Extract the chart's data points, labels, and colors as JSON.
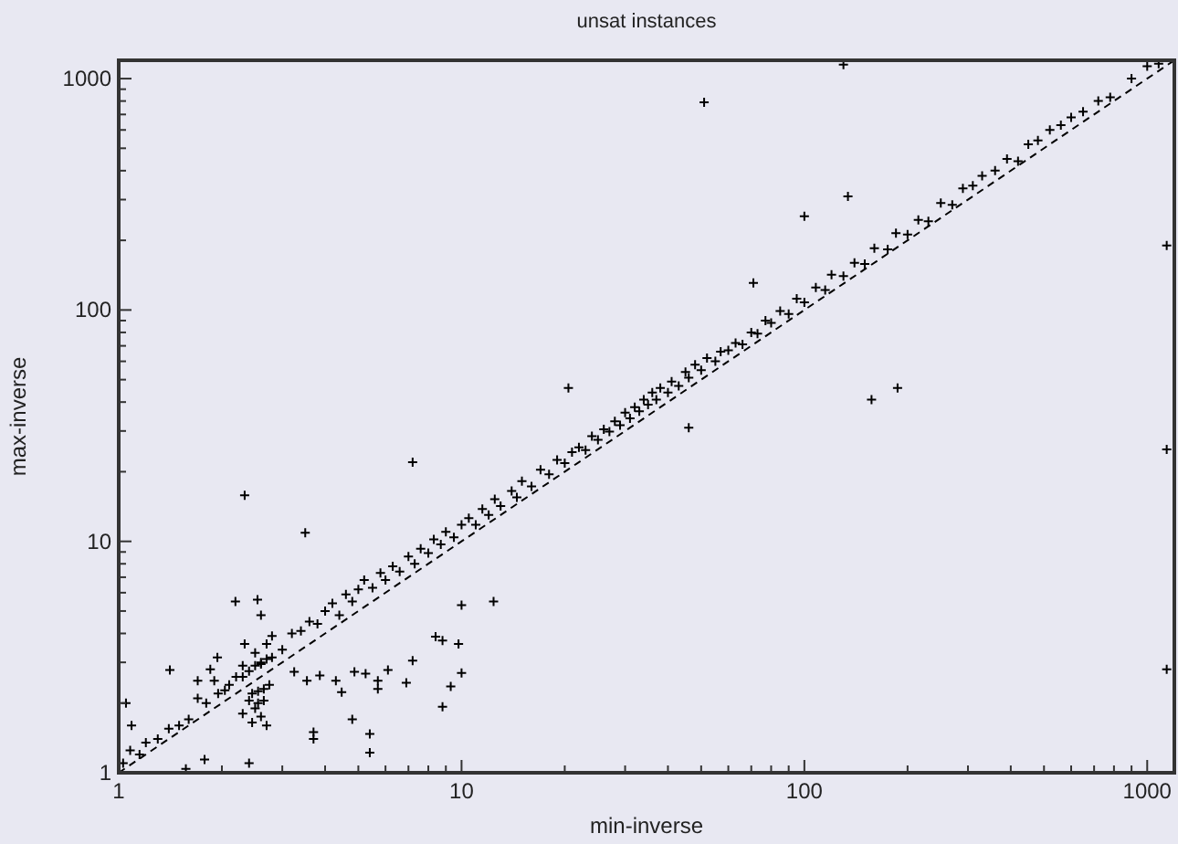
{
  "chart_data": {
    "type": "scatter",
    "title": "unsat instances",
    "xlabel": "min-inverse",
    "ylabel": "max-inverse",
    "log": "xy",
    "grid": false,
    "xlim": [
      1,
      1200
    ],
    "ylim": [
      1,
      1200
    ],
    "xticks": [
      1,
      {
        "value": 2,
        "label": null
      },
      {
        "value": 3,
        "label": null
      },
      {
        "value": 4,
        "label": null
      },
      {
        "value": 5,
        "label": null
      },
      {
        "value": 6,
        "label": null
      },
      {
        "value": 7,
        "label": null
      },
      {
        "value": 8,
        "label": null
      },
      {
        "value": 9,
        "label": null
      },
      10,
      {
        "value": 20,
        "label": null
      },
      {
        "value": 30,
        "label": null
      },
      {
        "value": 40,
        "label": null
      },
      {
        "value": 50,
        "label": null
      },
      {
        "value": 60,
        "label": null
      },
      {
        "value": 70,
        "label": null
      },
      {
        "value": 80,
        "label": null
      },
      {
        "value": 90,
        "label": null
      },
      100,
      {
        "value": 200,
        "label": null
      },
      {
        "value": 300,
        "label": null
      },
      {
        "value": 400,
        "label": null
      },
      {
        "value": 500,
        "label": null
      },
      {
        "value": 600,
        "label": null
      },
      {
        "value": 700,
        "label": null
      },
      {
        "value": 800,
        "label": null
      },
      {
        "value": 900,
        "label": null
      },
      1000
    ],
    "yticks": [
      1,
      {
        "value": 2,
        "label": null
      },
      {
        "value": 3,
        "label": null
      },
      {
        "value": 4,
        "label": null
      },
      {
        "value": 5,
        "label": null
      },
      {
        "value": 6,
        "label": null
      },
      {
        "value": 7,
        "label": null
      },
      {
        "value": 8,
        "label": null
      },
      {
        "value": 9,
        "label": null
      },
      10,
      {
        "value": 20,
        "label": null
      },
      {
        "value": 30,
        "label": null
      },
      {
        "value": 40,
        "label": null
      },
      {
        "value": 50,
        "label": null
      },
      {
        "value": 60,
        "label": null
      },
      {
        "value": 70,
        "label": null
      },
      {
        "value": 80,
        "label": null
      },
      {
        "value": 90,
        "label": null
      },
      100,
      {
        "value": 200,
        "label": null
      },
      {
        "value": 300,
        "label": null
      },
      {
        "value": 400,
        "label": null
      },
      {
        "value": 500,
        "label": null
      },
      {
        "value": 600,
        "label": null
      },
      {
        "value": 700,
        "label": null
      },
      {
        "value": 800,
        "label": null
      },
      {
        "value": 900,
        "label": null
      },
      1000
    ],
    "series": [
      {
        "marker": "cross",
        "color": "#000000",
        "x": [
          130,
          51,
          1140,
          1140,
          1140,
          100,
          134,
          157,
          187,
          20.5,
          46,
          71,
          2.33,
          3.5,
          7.2,
          12.4,
          10,
          8.8,
          9.3,
          10,
          8.4,
          8.8,
          9.8,
          4.8,
          5.4,
          5.4,
          3.7,
          3.7,
          2.4,
          1.78,
          1.57,
          1.41,
          1.05,
          1.09,
          2.19,
          2.54,
          2.6,
          2.33,
          3.25,
          3.86,
          4.3,
          4.87,
          5.25,
          5.7,
          6.1,
          7.2,
          6.9,
          3.54,
          4.47,
          5.7,
          2.04,
          1.9,
          1.85,
          1.7,
          1.94,
          2.4,
          2.45,
          2.5,
          2.55,
          2.6,
          2.65,
          2.7,
          2.75,
          2.8,
          2.3,
          2.65,
          2.4,
          2.5,
          2.6,
          2.7,
          2.45,
          2.55,
          2.3,
          1.03,
          1.08,
          1.15,
          1.2,
          1.3,
          1.4,
          1.5,
          1.6,
          1.7,
          1.8,
          1.95,
          2.1,
          2.2,
          2.3,
          2.5,
          2.6,
          2.7,
          2.8,
          3.0,
          3.2,
          3.4,
          3.6,
          3.8,
          4.0,
          4.2,
          4.4,
          4.6,
          4.8,
          5.0,
          5.2,
          5.5,
          5.8,
          6.0,
          6.3,
          6.6,
          7.0,
          7.3,
          7.6,
          8.0,
          8.3,
          8.7,
          9.0,
          9.5,
          10,
          10.5,
          11,
          11.5,
          12,
          12.5,
          13,
          14,
          14.5,
          15,
          16,
          17,
          18,
          19,
          20,
          21,
          22,
          23,
          24,
          25,
          26,
          27,
          28,
          29,
          30,
          31,
          32,
          33,
          34,
          35,
          36,
          37,
          38,
          40,
          41,
          43,
          45,
          46,
          48,
          50,
          52,
          55,
          57,
          60,
          63,
          66,
          70,
          73,
          77,
          80,
          85,
          90,
          95,
          100,
          108,
          115,
          120,
          130,
          140,
          150,
          160,
          175,
          185,
          200,
          215,
          230,
          250,
          270,
          290,
          310,
          330,
          360,
          390,
          420,
          450,
          480,
          520,
          560,
          600,
          650,
          720,
          780,
          900,
          1000,
          1080
        ],
        "values": [
          1150,
          790,
          190,
          25,
          2.8,
          254,
          310,
          41,
          46,
          46,
          31,
          131,
          15.8,
          10.9,
          22,
          5.5,
          5.3,
          1.93,
          2.36,
          2.7,
          3.87,
          3.73,
          3.6,
          1.7,
          1.47,
          1.22,
          1.5,
          1.4,
          1.1,
          1.14,
          1.04,
          2.78,
          2.0,
          1.6,
          5.5,
          5.6,
          4.8,
          3.6,
          2.73,
          2.63,
          2.5,
          2.73,
          2.68,
          2.5,
          2.78,
          3.05,
          2.45,
          2.5,
          2.23,
          2.3,
          2.27,
          2.5,
          2.8,
          2.5,
          3.15,
          2.75,
          2.2,
          2.9,
          2.25,
          2.95,
          2.3,
          3.1,
          2.4,
          3.15,
          2.6,
          2.05,
          2.05,
          1.9,
          1.75,
          1.6,
          1.65,
          2.0,
          1.8,
          1.1,
          1.25,
          1.2,
          1.35,
          1.4,
          1.55,
          1.6,
          1.7,
          2.1,
          2.0,
          2.2,
          2.4,
          2.6,
          2.9,
          3.3,
          3.0,
          3.6,
          3.9,
          3.4,
          4.0,
          4.1,
          4.5,
          4.4,
          5.0,
          5.4,
          4.8,
          5.9,
          5.5,
          6.2,
          6.8,
          6.3,
          7.3,
          6.8,
          7.8,
          7.4,
          8.6,
          8.0,
          9.3,
          8.9,
          10.2,
          9.7,
          11.0,
          10.4,
          11.8,
          12.6,
          11.8,
          13.8,
          13.0,
          15.2,
          14.2,
          16.5,
          15.5,
          18.2,
          17.3,
          20.4,
          19.5,
          22.5,
          21.8,
          24.3,
          25.5,
          24.8,
          28.5,
          27.5,
          30.5,
          29.8,
          33,
          31.8,
          36,
          34,
          38,
          36.5,
          41,
          39,
          44,
          41,
          46,
          44,
          49,
          47,
          54,
          51,
          58,
          55,
          62,
          60,
          66,
          67,
          72,
          71,
          80,
          79,
          90,
          88,
          99,
          96,
          112,
          108,
          125,
          122,
          142,
          140,
          160,
          158,
          185,
          183,
          215,
          212,
          245,
          242,
          290,
          285,
          335,
          345,
          380,
          400,
          450,
          440,
          520,
          540,
          600,
          630,
          680,
          720,
          800,
          830,
          1000,
          1130,
          1160
        ]
      },
      {
        "type": "line",
        "color": "#000000",
        "line_style": "dashed",
        "x": [
          1,
          1200
        ],
        "values": [
          1,
          1200
        ]
      }
    ]
  }
}
